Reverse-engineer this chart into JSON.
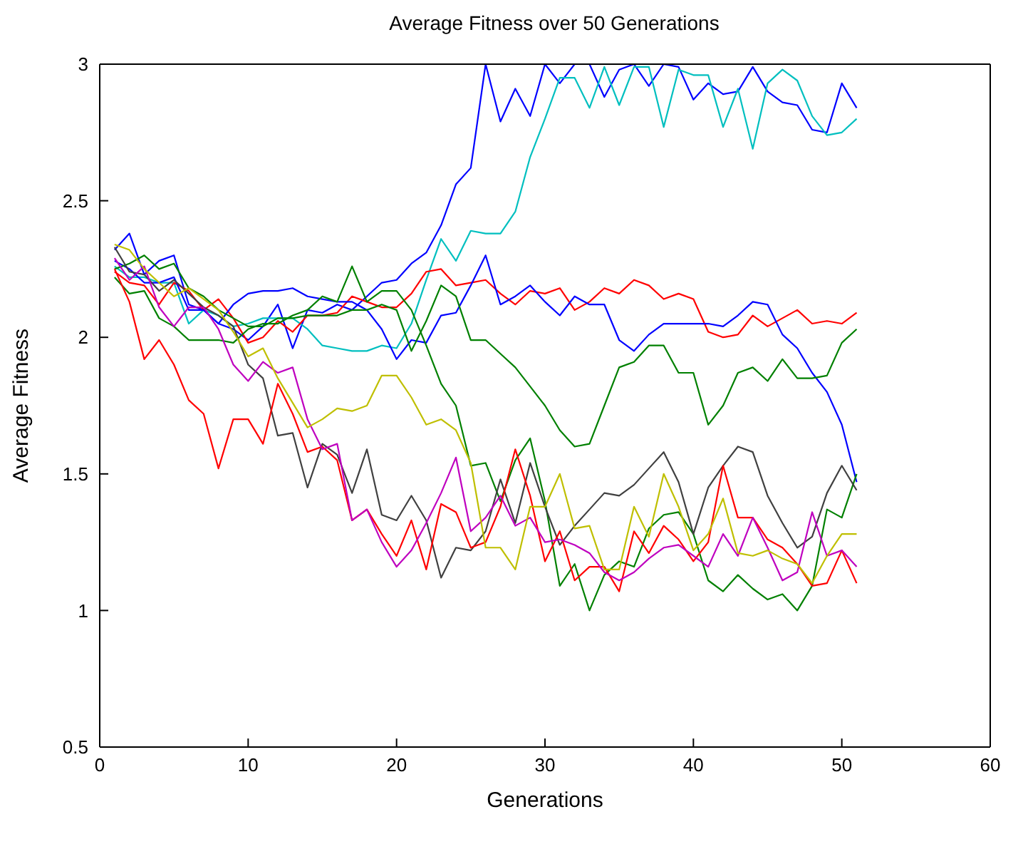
{
  "chart_data": {
    "type": "line",
    "title": "Average Fitness over 50 Generations",
    "xlabel": "Generations",
    "ylabel": "Average Fitness",
    "x": [
      1,
      2,
      3,
      4,
      5,
      6,
      7,
      8,
      9,
      10,
      11,
      12,
      13,
      14,
      15,
      16,
      17,
      18,
      19,
      20,
      21,
      22,
      23,
      24,
      25,
      26,
      27,
      28,
      29,
      30,
      31,
      32,
      33,
      34,
      35,
      36,
      37,
      38,
      39,
      40,
      41,
      42,
      43,
      44,
      45,
      46,
      47,
      48,
      49,
      50,
      51
    ],
    "xlim": [
      0,
      60
    ],
    "xticks": [
      0,
      10,
      20,
      30,
      40,
      50,
      60
    ],
    "ylim": [
      0.5,
      3
    ],
    "yticks": [
      0.5,
      1,
      1.5,
      2,
      2.5,
      3
    ],
    "grid": false,
    "legend": false,
    "marker": "none",
    "line_style": "solid",
    "series": [
      {
        "color": "#0000ff",
        "values": [
          2.32,
          2.38,
          2.23,
          2.28,
          2.3,
          2.12,
          2.1,
          2.05,
          2.03,
          1.99,
          2.04,
          2.12,
          1.96,
          2.1,
          2.09,
          2.12,
          2.1,
          2.15,
          2.2,
          2.21,
          2.27,
          2.31,
          2.41,
          2.56,
          2.62,
          3,
          2.79,
          2.91,
          2.81,
          3,
          2.93,
          3,
          3,
          2.88,
          2.98,
          3,
          2.92,
          3,
          2.99,
          2.87,
          2.93,
          2.89,
          2.9,
          2.99,
          2.9,
          2.86,
          2.85,
          2.76,
          2.75,
          2.93,
          2.84
        ]
      },
      {
        "color": "#00bfbf",
        "values": [
          2.26,
          2.22,
          2.22,
          2.2,
          2.2,
          2.05,
          2.1,
          2.08,
          2.04,
          2.05,
          2.07,
          2.07,
          2.07,
          2.03,
          1.97,
          1.96,
          1.95,
          1.95,
          1.97,
          1.96,
          2.05,
          2.21,
          2.36,
          2.28,
          2.39,
          2.38,
          2.38,
          2.46,
          2.66,
          2.8,
          2.95,
          2.95,
          2.84,
          2.99,
          2.85,
          2.99,
          2.99,
          2.77,
          2.98,
          2.96,
          2.96,
          2.77,
          2.91,
          2.69,
          2.93,
          2.98,
          2.94,
          2.81,
          2.74,
          2.75,
          2.8
        ]
      },
      {
        "color": "#ff0000",
        "values": [
          2.24,
          2.2,
          2.19,
          2.12,
          2.2,
          2.17,
          2.1,
          2.14,
          2.07,
          1.98,
          2,
          2.06,
          2.02,
          2.08,
          2.08,
          2.09,
          2.15,
          2.13,
          2.11,
          2.11,
          2.16,
          2.24,
          2.25,
          2.19,
          2.2,
          2.21,
          2.16,
          2.12,
          2.17,
          2.16,
          2.18,
          2.1,
          2.13,
          2.18,
          2.16,
          2.21,
          2.19,
          2.14,
          2.16,
          2.14,
          2.02,
          2,
          2.01,
          2.08,
          2.04,
          2.07,
          2.1,
          2.05,
          2.06,
          2.05,
          2.09
        ]
      },
      {
        "color": "#0000ff",
        "values": [
          2.28,
          2.25,
          2.2,
          2.2,
          2.22,
          2.1,
          2.1,
          2.05,
          2.12,
          2.16,
          2.17,
          2.17,
          2.18,
          2.15,
          2.14,
          2.13,
          2.13,
          2.1,
          2.03,
          1.92,
          1.99,
          1.98,
          2.08,
          2.09,
          2.19,
          2.3,
          2.12,
          2.15,
          2.19,
          2.13,
          2.08,
          2.15,
          2.12,
          2.12,
          1.99,
          1.95,
          2.01,
          2.05,
          2.05,
          2.05,
          2.05,
          2.04,
          2.08,
          2.13,
          2.12,
          2.01,
          1.96,
          1.87,
          1.8,
          1.68,
          1.47
        ]
      },
      {
        "color": "#008000",
        "values": [
          2.25,
          2.27,
          2.3,
          2.25,
          2.27,
          2.18,
          2.15,
          2.1,
          2.07,
          2.04,
          2.04,
          2.07,
          2.07,
          2.08,
          2.08,
          2.08,
          2.1,
          2.1,
          2.12,
          2.1,
          1.95,
          2.06,
          2.19,
          2.15,
          1.99,
          1.99,
          1.94,
          1.89,
          1.82,
          1.75,
          1.66,
          1.6,
          1.61,
          1.75,
          1.89,
          1.91,
          1.97,
          1.97,
          1.87,
          1.87,
          1.68,
          1.75,
          1.87,
          1.89,
          1.84,
          1.92,
          1.85,
          1.85,
          1.86,
          1.98,
          2.03
        ]
      },
      {
        "color": "#008000",
        "values": [
          2.22,
          2.16,
          2.17,
          2.07,
          2.04,
          1.99,
          1.99,
          1.99,
          1.98,
          2.03,
          2.05,
          2.05,
          2.08,
          2.1,
          2.15,
          2.13,
          2.26,
          2.13,
          2.17,
          2.17,
          2.1,
          1.97,
          1.83,
          1.75,
          1.53,
          1.54,
          1.4,
          1.55,
          1.63,
          1.4,
          1.09,
          1.17,
          1,
          1.13,
          1.18,
          1.16,
          1.3,
          1.35,
          1.36,
          1.28,
          1.11,
          1.07,
          1.13,
          1.08,
          1.04,
          1.06,
          1,
          1.09,
          1.37,
          1.34,
          1.5
        ]
      },
      {
        "color": "#404040",
        "values": [
          2.33,
          2.24,
          2.23,
          2.17,
          2.21,
          2.16,
          2.11,
          2.08,
          2.04,
          1.9,
          1.85,
          1.64,
          1.65,
          1.45,
          1.61,
          1.57,
          1.43,
          1.59,
          1.35,
          1.33,
          1.42,
          1.33,
          1.12,
          1.23,
          1.22,
          1.29,
          1.48,
          1.32,
          1.54,
          1.38,
          1.24,
          1.31,
          1.37,
          1.43,
          1.42,
          1.46,
          1.52,
          1.58,
          1.47,
          1.28,
          1.45,
          1.53,
          1.6,
          1.58,
          1.42,
          1.32,
          1.23,
          1.27,
          1.43,
          1.53,
          1.44
        ]
      },
      {
        "color": "#ff0000",
        "values": [
          2.25,
          2.13,
          1.92,
          1.99,
          1.9,
          1.77,
          1.72,
          1.52,
          1.7,
          1.7,
          1.61,
          1.83,
          1.72,
          1.58,
          1.6,
          1.55,
          1.33,
          1.37,
          1.28,
          1.2,
          1.33,
          1.15,
          1.39,
          1.36,
          1.23,
          1.25,
          1.38,
          1.59,
          1.42,
          1.18,
          1.29,
          1.11,
          1.16,
          1.16,
          1.07,
          1.29,
          1.21,
          1.31,
          1.26,
          1.18,
          1.25,
          1.53,
          1.34,
          1.34,
          1.26,
          1.23,
          1.17,
          1.09,
          1.1,
          1.22,
          1.1
        ]
      },
      {
        "color": "#bf00bf",
        "values": [
          2.29,
          2.21,
          2.26,
          2.11,
          2.04,
          2.11,
          2.11,
          2.03,
          1.9,
          1.84,
          1.91,
          1.87,
          1.89,
          1.7,
          1.59,
          1.61,
          1.33,
          1.37,
          1.25,
          1.16,
          1.22,
          1.32,
          1.43,
          1.56,
          1.29,
          1.34,
          1.42,
          1.31,
          1.34,
          1.25,
          1.26,
          1.24,
          1.21,
          1.14,
          1.11,
          1.14,
          1.19,
          1.23,
          1.24,
          1.2,
          1.16,
          1.28,
          1.2,
          1.34,
          1.23,
          1.11,
          1.14,
          1.36,
          1.2,
          1.22,
          1.16
        ]
      },
      {
        "color": "#bfbf00",
        "values": [
          2.34,
          2.32,
          2.25,
          2.2,
          2.15,
          2.18,
          2.14,
          2.1,
          2.02,
          1.93,
          1.96,
          1.85,
          1.76,
          1.67,
          1.7,
          1.74,
          1.73,
          1.75,
          1.86,
          1.86,
          1.78,
          1.68,
          1.7,
          1.66,
          1.54,
          1.23,
          1.23,
          1.15,
          1.38,
          1.38,
          1.5,
          1.3,
          1.31,
          1.15,
          1.15,
          1.38,
          1.27,
          1.5,
          1.38,
          1.22,
          1.28,
          1.41,
          1.21,
          1.2,
          1.22,
          1.19,
          1.17,
          1.1,
          1.2,
          1.28,
          1.28
        ]
      }
    ]
  }
}
